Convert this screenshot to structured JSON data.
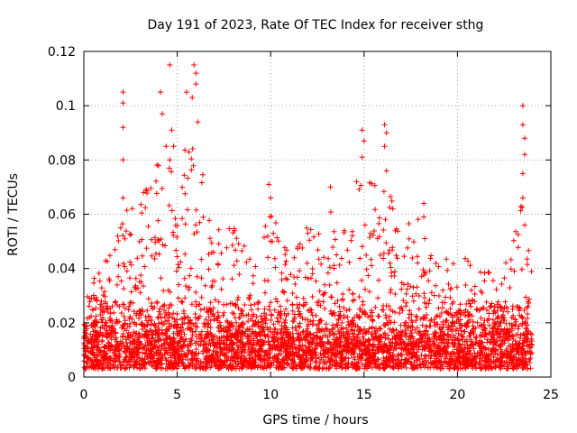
{
  "chart_data": {
    "type": "scatter",
    "title": "Day 191 of 2023, Rate Of TEC Index for receiver sthg",
    "xlabel": "GPS time / hours",
    "ylabel": "ROTI / TECUs",
    "xlim": [
      0,
      25
    ],
    "ylim": [
      0,
      0.12
    ],
    "x_ticks": [
      0,
      5,
      10,
      15,
      20,
      25
    ],
    "y_ticks": [
      0,
      0.02,
      0.04,
      0.06,
      0.08,
      0.1,
      0.12
    ],
    "x_tick_labels": [
      "0",
      "5",
      "10",
      "15",
      "20",
      "25"
    ],
    "y_tick_labels": [
      "0",
      "0.02",
      "0.04",
      "0.06",
      "0.08",
      "0.1",
      "0.12"
    ],
    "grid": true,
    "marker": "+",
    "color": "#ff0000",
    "data_range_x": [
      0,
      24
    ],
    "series": [
      {
        "name": "ROTI",
        "baseline_band": [
          0.003,
          0.03
        ],
        "notable_points": [
          {
            "x": 2.1,
            "y": 0.105
          },
          {
            "x": 2.1,
            "y": 0.101
          },
          {
            "x": 2.1,
            "y": 0.092
          },
          {
            "x": 2.1,
            "y": 0.08
          },
          {
            "x": 2.1,
            "y": 0.066
          },
          {
            "x": 4.1,
            "y": 0.105
          },
          {
            "x": 4.2,
            "y": 0.097
          },
          {
            "x": 4.6,
            "y": 0.115
          },
          {
            "x": 4.7,
            "y": 0.091
          },
          {
            "x": 5.5,
            "y": 0.105
          },
          {
            "x": 5.8,
            "y": 0.103
          },
          {
            "x": 5.9,
            "y": 0.115
          },
          {
            "x": 6.0,
            "y": 0.112
          },
          {
            "x": 6.0,
            "y": 0.108
          },
          {
            "x": 6.1,
            "y": 0.094
          },
          {
            "x": 4.4,
            "y": 0.085
          },
          {
            "x": 4.6,
            "y": 0.08
          },
          {
            "x": 4.8,
            "y": 0.085
          },
          {
            "x": 3.2,
            "y": 0.068
          },
          {
            "x": 9.9,
            "y": 0.071
          },
          {
            "x": 10.0,
            "y": 0.066
          },
          {
            "x": 13.2,
            "y": 0.07
          },
          {
            "x": 14.6,
            "y": 0.072
          },
          {
            "x": 14.9,
            "y": 0.091
          },
          {
            "x": 15.0,
            "y": 0.087
          },
          {
            "x": 14.9,
            "y": 0.081
          },
          {
            "x": 16.1,
            "y": 0.093
          },
          {
            "x": 16.2,
            "y": 0.09
          },
          {
            "x": 16.1,
            "y": 0.085
          },
          {
            "x": 16.2,
            "y": 0.076
          },
          {
            "x": 18.2,
            "y": 0.064
          },
          {
            "x": 18.2,
            "y": 0.059
          },
          {
            "x": 23.5,
            "y": 0.1
          },
          {
            "x": 23.5,
            "y": 0.093
          },
          {
            "x": 23.6,
            "y": 0.088
          },
          {
            "x": 23.6,
            "y": 0.082
          },
          {
            "x": 23.5,
            "y": 0.075
          },
          {
            "x": 23.5,
            "y": 0.066
          },
          {
            "x": 23.6,
            "y": 0.056
          }
        ],
        "envelope": [
          {
            "x": 0.0,
            "y": 0.032
          },
          {
            "x": 1.0,
            "y": 0.04
          },
          {
            "x": 2.0,
            "y": 0.06
          },
          {
            "x": 3.0,
            "y": 0.065
          },
          {
            "x": 4.0,
            "y": 0.085
          },
          {
            "x": 5.0,
            "y": 0.08
          },
          {
            "x": 6.0,
            "y": 0.09
          },
          {
            "x": 7.0,
            "y": 0.058
          },
          {
            "x": 8.0,
            "y": 0.056
          },
          {
            "x": 9.0,
            "y": 0.045
          },
          {
            "x": 10.0,
            "y": 0.06
          },
          {
            "x": 11.0,
            "y": 0.05
          },
          {
            "x": 12.0,
            "y": 0.058
          },
          {
            "x": 13.0,
            "y": 0.06
          },
          {
            "x": 14.0,
            "y": 0.065
          },
          {
            "x": 15.0,
            "y": 0.075
          },
          {
            "x": 16.0,
            "y": 0.075
          },
          {
            "x": 17.0,
            "y": 0.057
          },
          {
            "x": 18.0,
            "y": 0.06
          },
          {
            "x": 19.0,
            "y": 0.042
          },
          {
            "x": 20.0,
            "y": 0.048
          },
          {
            "x": 21.0,
            "y": 0.04
          },
          {
            "x": 22.0,
            "y": 0.04
          },
          {
            "x": 23.0,
            "y": 0.05
          },
          {
            "x": 23.6,
            "y": 0.08
          },
          {
            "x": 24.0,
            "y": 0.045
          }
        ]
      }
    ]
  }
}
